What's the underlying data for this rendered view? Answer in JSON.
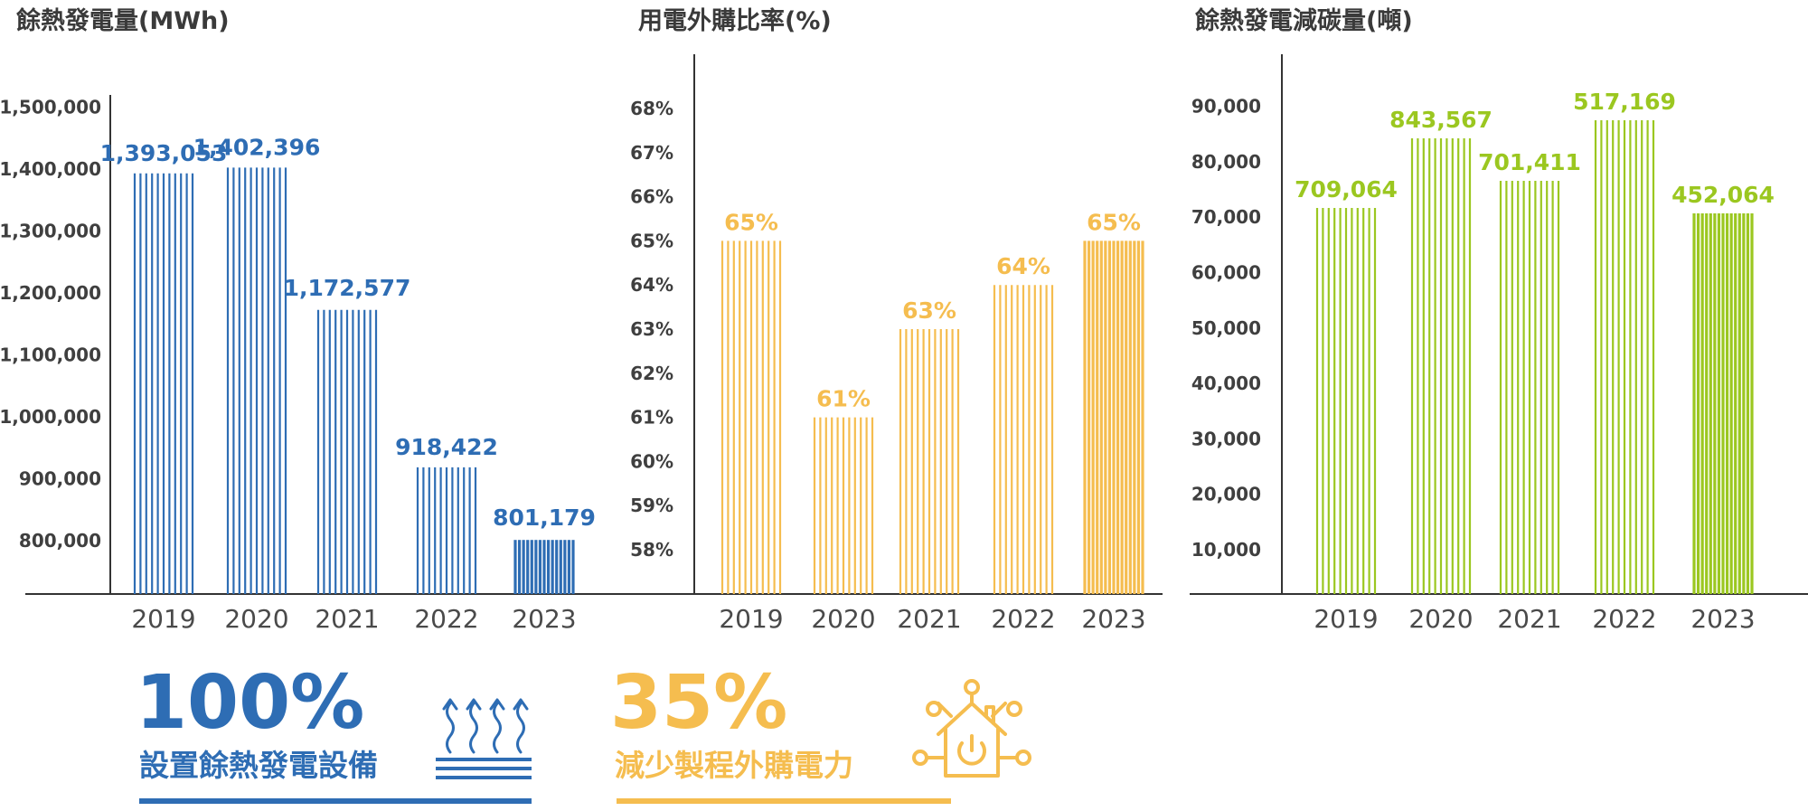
{
  "colors": {
    "blue": "#2e6db4",
    "yellow": "#f5bd4f",
    "green": "#9bc720",
    "axis": "#333333",
    "text": "#3f3f3f"
  },
  "chart_data": [
    {
      "type": "bar",
      "title": "餘熱發電量(MWh)",
      "categories": [
        "2019",
        "2020",
        "2021",
        "2022",
        "2023"
      ],
      "values": [
        1393053,
        1402396,
        1172577,
        918422,
        801179
      ],
      "value_labels": [
        "1,393,053",
        "1,402,396",
        "1,172,577",
        "918,422",
        "801,179"
      ],
      "y_ticks": [
        800000,
        900000,
        1000000,
        1100000,
        1200000,
        1300000,
        1400000,
        1500000
      ],
      "y_tick_labels": [
        "800,000",
        "900,000",
        "1,000,000",
        "1,100,000",
        "1,200,000",
        "1,300,000",
        "1,400,000",
        "1,500,000"
      ],
      "color": "#2e6db4",
      "icon": "heat-wave-icon"
    },
    {
      "type": "bar",
      "title": "用電外購比率(%)",
      "categories": [
        "2019",
        "2020",
        "2021",
        "2022",
        "2023"
      ],
      "values": [
        65,
        61,
        63,
        64,
        65
      ],
      "value_labels": [
        "65%",
        "61%",
        "63%",
        "64%",
        "65%"
      ],
      "y_ticks": [
        58,
        59,
        60,
        61,
        62,
        63,
        64,
        65,
        66,
        67,
        68
      ],
      "y_tick_labels": [
        "58%",
        "59%",
        "60%",
        "61%",
        "62%",
        "63%",
        "64%",
        "65%",
        "66%",
        "67%",
        "68%"
      ],
      "color": "#f5bd4f",
      "icon": "smart-home-power-icon"
    },
    {
      "type": "bar",
      "title": "餘熱發電減碳量(噸)",
      "categories": [
        "2019",
        "2020",
        "2021",
        "2022",
        "2023"
      ],
      "values": [
        709064,
        843567,
        701411,
        517169,
        452064
      ],
      "value_labels": [
        "709,064",
        "843,567",
        "701,411",
        "517,169",
        "452,064"
      ],
      "y_ticks": [
        10000,
        20000,
        30000,
        40000,
        50000,
        60000,
        70000,
        80000,
        90000
      ],
      "y_tick_labels": [
        "10,000",
        "20,000",
        "30,000",
        "40,000",
        "50,000",
        "60,000",
        "70,000",
        "80,000",
        "90,000"
      ],
      "color": "#9bc720"
    }
  ],
  "highlights": [
    {
      "value": "100%",
      "caption": "設置餘熱發電設備",
      "color": "#2e6db4",
      "icon": "heat-wave-icon"
    },
    {
      "value": "35%",
      "caption": "減少製程外購電力",
      "color": "#f5bd4f",
      "icon": "smart-home-power-icon"
    }
  ]
}
